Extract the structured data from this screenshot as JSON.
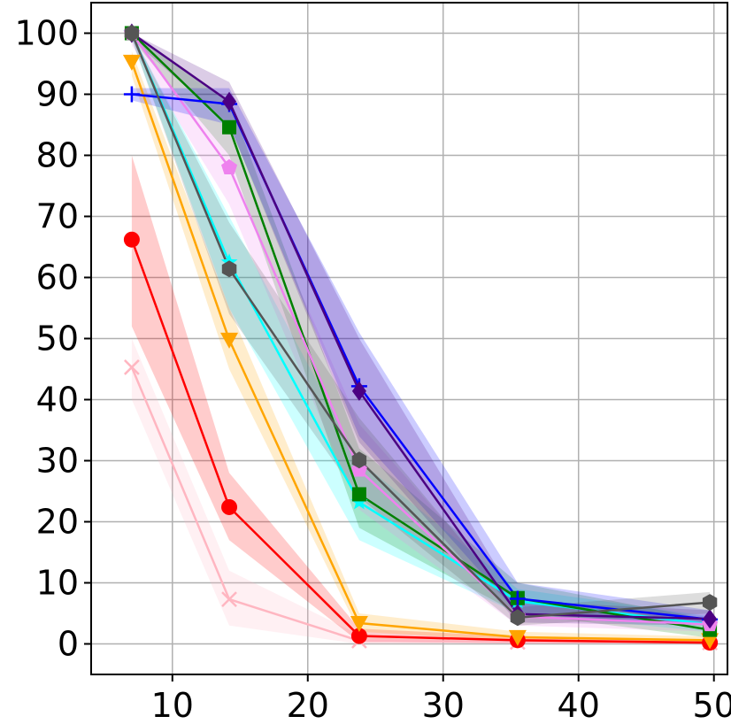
{
  "chart_data": {
    "type": "line",
    "title": "",
    "xlabel": "",
    "ylabel": "",
    "xlim": [
      4,
      51
    ],
    "ylim": [
      -5,
      105
    ],
    "x_ticks": [
      10,
      20,
      30,
      40,
      50
    ],
    "y_ticks": [
      0,
      10,
      20,
      30,
      40,
      50,
      60,
      70,
      80,
      90,
      100
    ],
    "x_tick_labels": [
      "10",
      "20",
      "30",
      "40",
      "50"
    ],
    "y_tick_labels": [
      "0",
      "10",
      "20",
      "30",
      "40",
      "50",
      "60",
      "70",
      "80",
      "90",
      "100"
    ],
    "grid": true,
    "legend": "none",
    "x": [
      7,
      14.2,
      23.8,
      35.5,
      49.7
    ],
    "series": [
      {
        "color": "#ffb6c1",
        "marker": "x",
        "values": [
          45.3,
          7.3,
          0.5,
          0.3,
          0.2
        ],
        "lower": [
          40,
          3,
          0,
          0,
          0
        ],
        "upper": [
          50,
          12,
          1.5,
          0.8,
          0.5
        ]
      },
      {
        "color": "#ff0000",
        "marker": "circle",
        "values": [
          66.2,
          22.4,
          1.3,
          0.6,
          0.2
        ],
        "lower": [
          52,
          17,
          0.3,
          0.2,
          0
        ],
        "upper": [
          80,
          28,
          2.5,
          1.2,
          0.5
        ]
      },
      {
        "color": "#ffa500",
        "marker": "triangle-down",
        "values": [
          95.3,
          49.8,
          3.4,
          1.1,
          0.6
        ],
        "lower": [
          93,
          45,
          2,
          0.5,
          0.2
        ],
        "upper": [
          97,
          55,
          5,
          2,
          1.2
        ]
      },
      {
        "color": "#00ffff",
        "marker": "star",
        "values": [
          100,
          62.5,
          23.2,
          7,
          3.2
        ],
        "lower": [
          99,
          55,
          17,
          5,
          2
        ],
        "upper": [
          100,
          70,
          30,
          9,
          4.5
        ]
      },
      {
        "color": "#008000",
        "marker": "square",
        "values": [
          100,
          84.6,
          24.5,
          7.5,
          2.3
        ],
        "lower": [
          99,
          80,
          19,
          5,
          1
        ],
        "upper": [
          100,
          89,
          32,
          10,
          4
        ]
      },
      {
        "color": "#ee82ee",
        "marker": "pentagon",
        "values": [
          100,
          78,
          28.5,
          4.5,
          3.2
        ],
        "lower": [
          98,
          72,
          22,
          3,
          2
        ],
        "upper": [
          100,
          84,
          36,
          6.5,
          4.5
        ]
      },
      {
        "color": "#0000ff",
        "marker": "plus",
        "values": [
          90,
          88.4,
          42.2,
          7.4,
          4
        ],
        "lower": [
          89,
          85,
          34,
          5,
          3
        ],
        "upper": [
          91,
          91,
          51,
          10,
          5.5
        ]
      },
      {
        "color": "#4b0082",
        "marker": "diamond",
        "values": [
          100,
          88.8,
          41.4,
          4.9,
          4.1
        ],
        "lower": [
          99,
          85,
          33,
          3.5,
          3
        ],
        "upper": [
          100,
          92,
          50,
          7,
          5.5
        ]
      },
      {
        "color": "#555555",
        "marker": "hexagon",
        "values": [
          100,
          61.4,
          30.1,
          4.3,
          6.8
        ],
        "lower": [
          99,
          54,
          24,
          3,
          5
        ],
        "upper": [
          100,
          69,
          37,
          6,
          8.5
        ]
      }
    ]
  }
}
